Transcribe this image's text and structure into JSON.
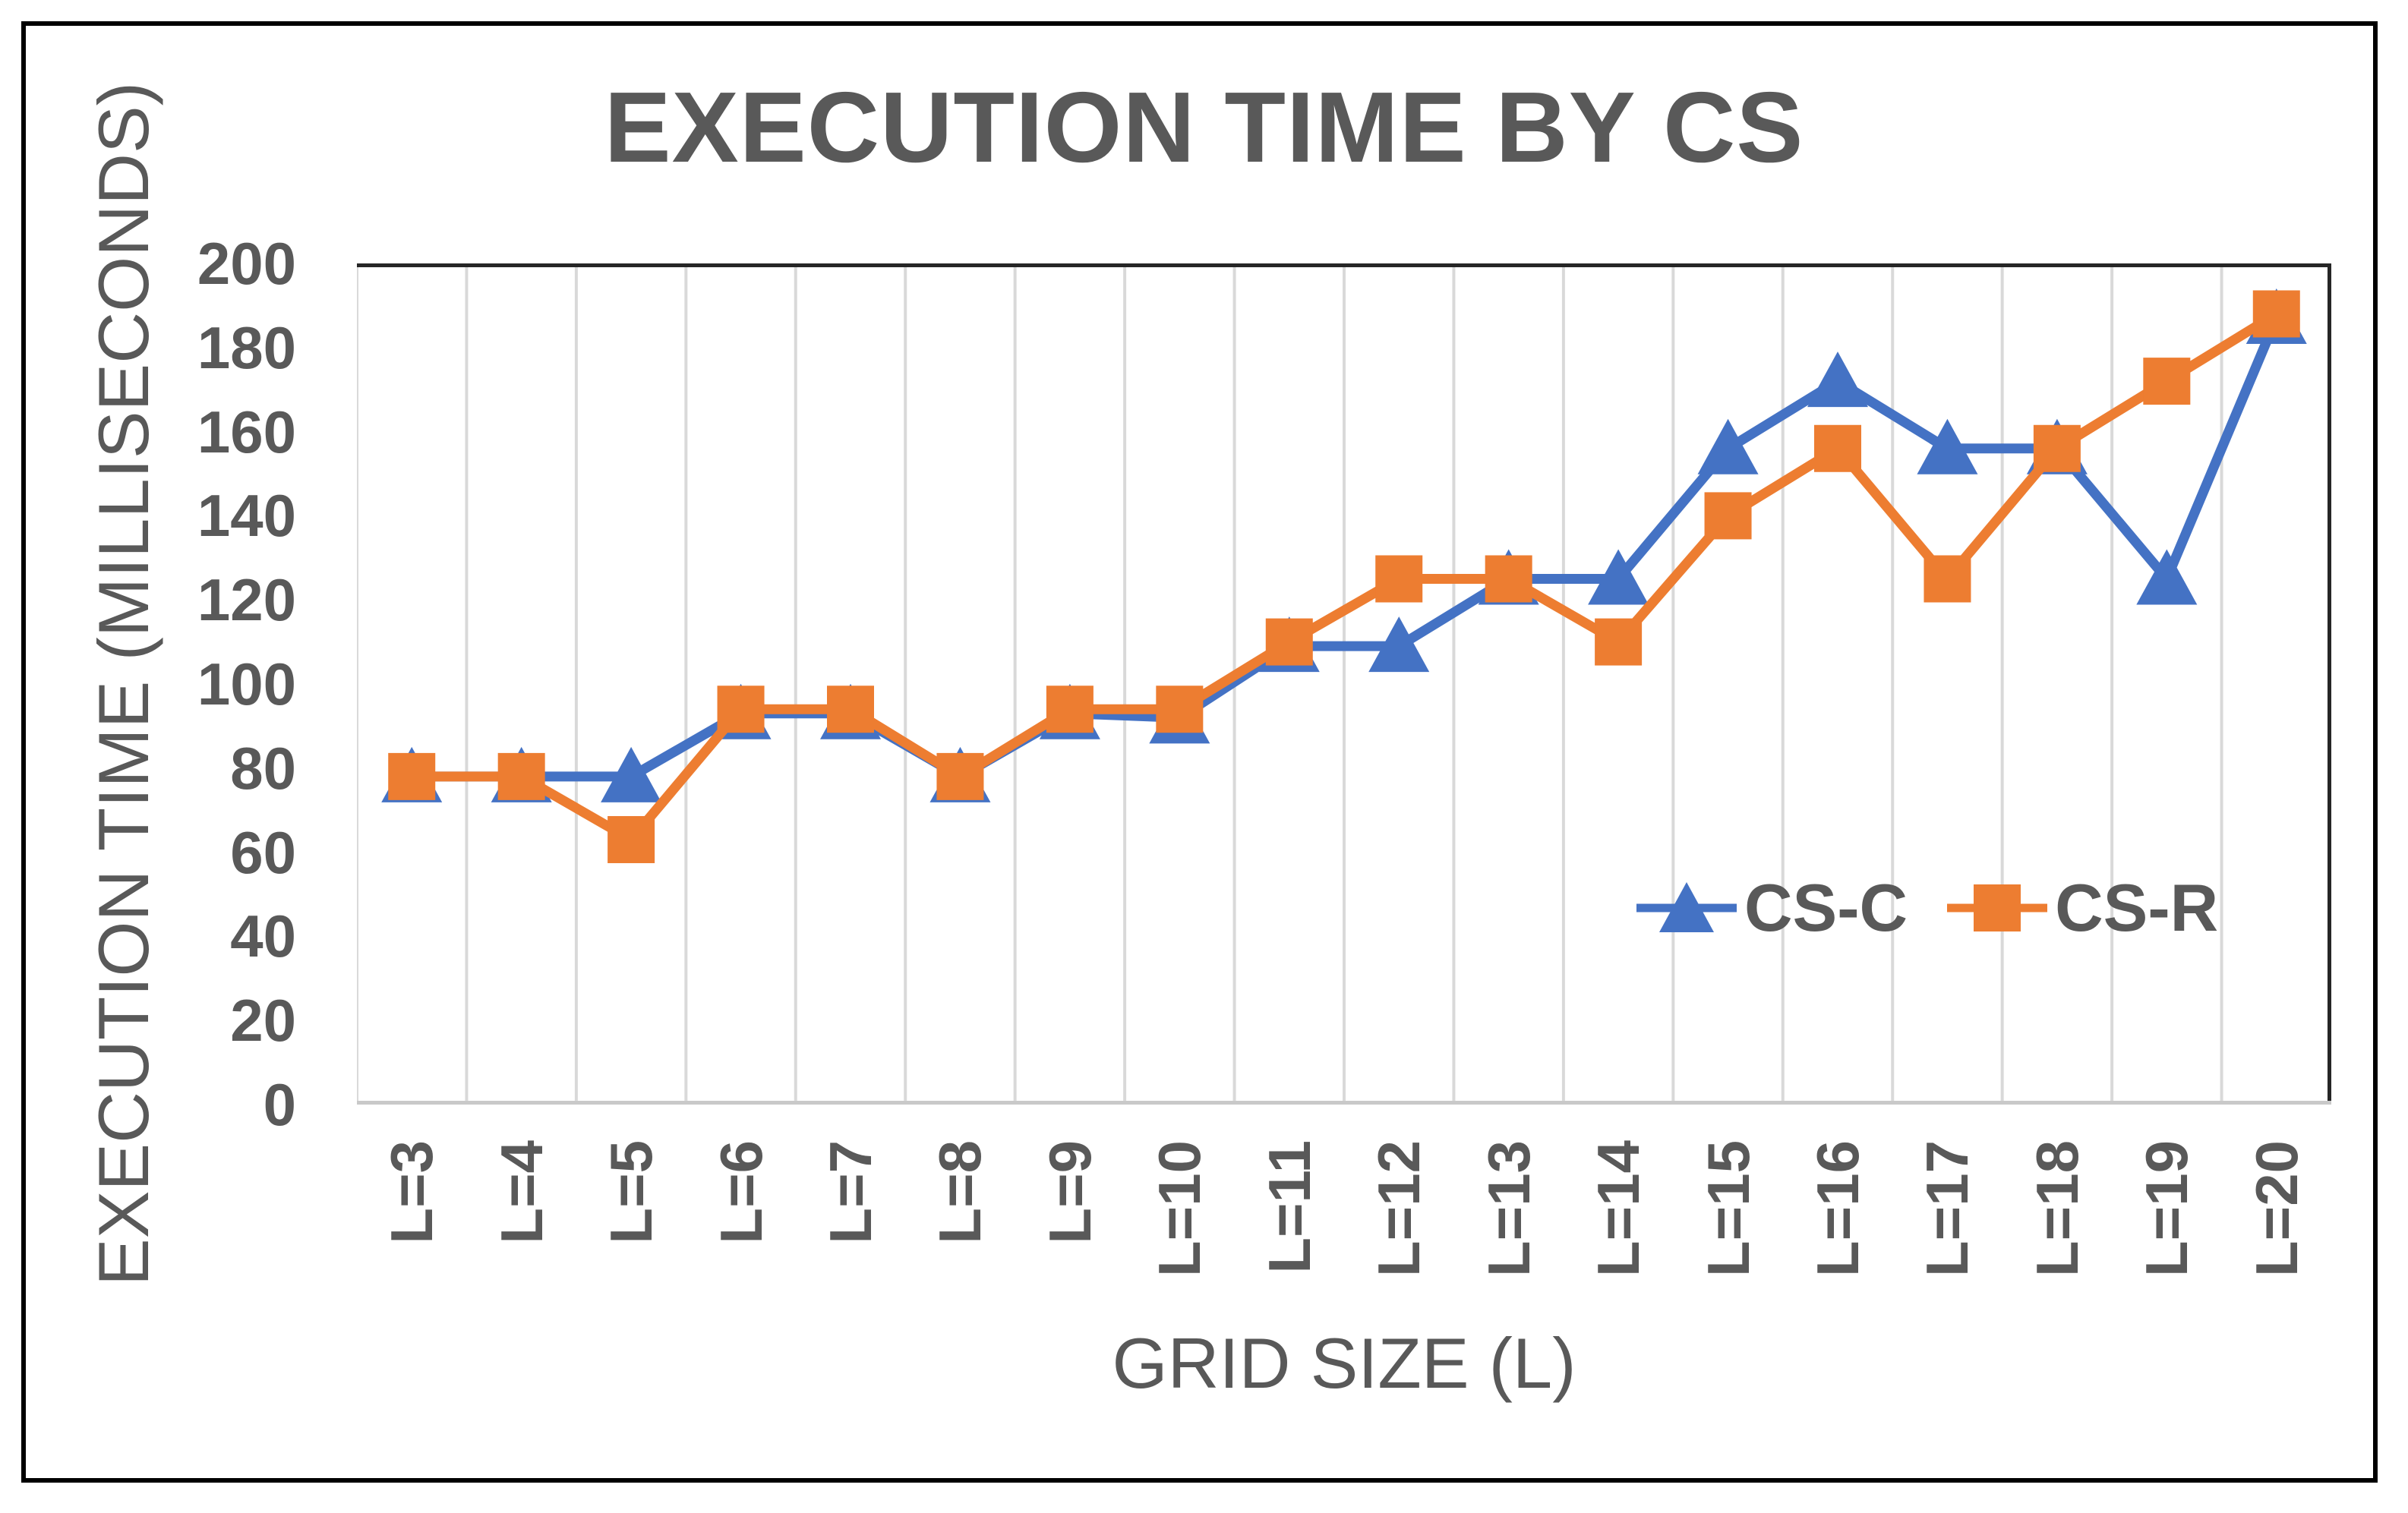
{
  "page": {
    "background": "#FFFFFF",
    "frame_border_color": "#000000"
  },
  "chart_data": {
    "type": "line",
    "title": "EXECUTION TIME BY CS",
    "xlabel": "GRID SIZE (L)",
    "ylabel": "EXECUTION TIME (MILLISECONDS)",
    "categories": [
      "L=3",
      "L=4",
      "L=5",
      "L=6",
      "L=7",
      "L=8",
      "L=9",
      "L=10",
      "L=11",
      "L=12",
      "L=13",
      "L=14",
      "L=15",
      "L=16",
      "L=17",
      "L=18",
      "L=19",
      "L=20"
    ],
    "y_ticks": [
      200,
      180,
      160,
      140,
      120,
      100,
      80,
      60,
      40,
      20,
      0
    ],
    "ylim": [
      0,
      200
    ],
    "grid": "vertical-gridlines-only",
    "gridline_color": "#D9D9D9",
    "axis_line_color": "#C9C9C9",
    "plot_border_color": "#262626",
    "text_color": "#595959",
    "legend_position": "inside-lower-right",
    "series": [
      {
        "name": "CS-C",
        "marker": "triangle",
        "color": "#4472C4",
        "values": [
          78,
          78,
          78,
          93,
          93,
          78,
          93,
          92,
          109,
          109,
          125,
          125,
          156,
          172,
          156,
          156,
          125,
          187
        ]
      },
      {
        "name": "CS-R",
        "marker": "square",
        "color": "#ED7D31",
        "values": [
          78,
          78,
          63,
          94,
          94,
          78,
          94,
          94,
          110,
          125,
          125,
          110,
          140,
          156,
          125,
          156,
          172,
          188
        ]
      }
    ]
  }
}
